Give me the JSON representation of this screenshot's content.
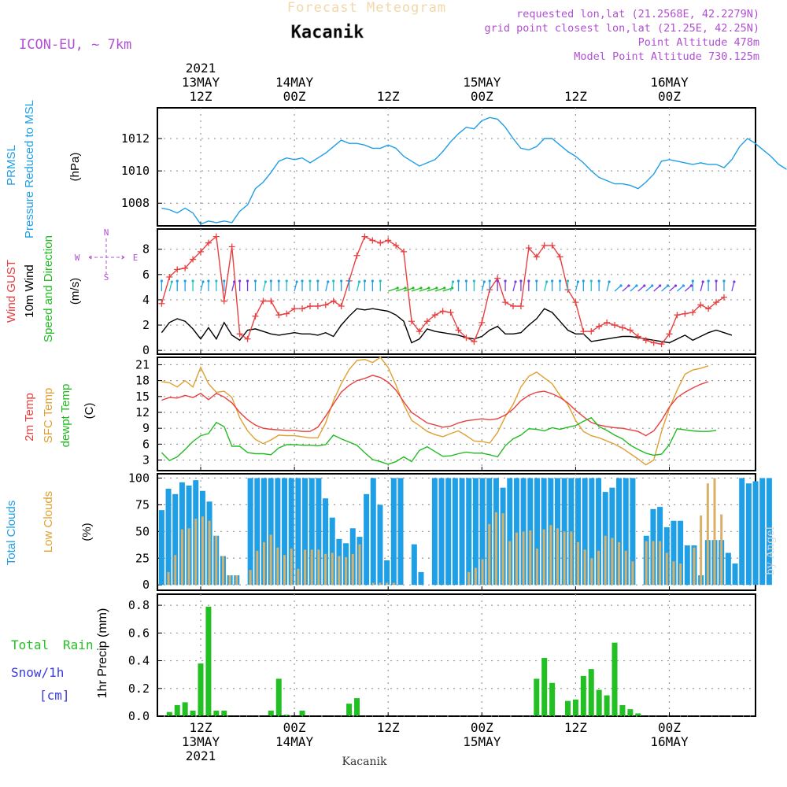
{
  "header": {
    "product": "Forecast Meteogram",
    "location": "Kacanik",
    "model": "ICON-EU, ~ 7km",
    "requested": "requested lon,lat (21.2568E, 42.2279N)",
    "gridpoint": "grid point closest lon,lat (21.25E, 42.25N)",
    "point_alt": "Point Altitude 478m",
    "model_alt": "Model Point Altitude 730.125m",
    "footer_location": "Kacanik",
    "credit": "by Angel"
  },
  "time_axis": {
    "year": "2021",
    "ticks": [
      {
        "t": 0,
        "hour": "12Z",
        "date": "13MAY"
      },
      {
        "t": 12,
        "hour": "00Z",
        "date": "14MAY"
      },
      {
        "t": 24,
        "hour": "12Z",
        "date": ""
      },
      {
        "t": 36,
        "hour": "00Z",
        "date": "15MAY"
      },
      {
        "t": 48,
        "hour": "12Z",
        "date": ""
      },
      {
        "t": 60,
        "hour": "00Z",
        "date": "16MAY"
      }
    ],
    "t_min": -5.5,
    "t_max": 71
  },
  "colors": {
    "pressure": "#1f9fe6",
    "gust": "#e84040",
    "wind": "#000000",
    "dir_label": "#22bb22",
    "temp": "#e84040",
    "sfc": "#e0a030",
    "dewpt": "#22bb22",
    "total_cloud": "#1f9fe6",
    "low_cloud": "#d8b068",
    "rain": "#22c022",
    "snow": "#3a3ae0",
    "purple": "#b050d0"
  },
  "chart_data": [
    {
      "type": "line",
      "name": "pressure",
      "label1": "PRMSL",
      "label2": "Pressure Reduced to MSL",
      "unit": "(hPa)",
      "ylim": [
        1006.6,
        1013.9
      ],
      "yticks": [
        1008,
        1010,
        1012
      ],
      "values": [
        1007.7,
        1007.6,
        1007.4,
        1007.7,
        1007.4,
        1006.7,
        1006.9,
        1006.8,
        1006.9,
        1006.8,
        1007.5,
        1007.9,
        1008.9,
        1009.3,
        1009.9,
        1010.6,
        1010.8,
        1010.7,
        1010.8,
        1010.5,
        1010.8,
        1011.1,
        1011.5,
        1011.9,
        1011.7,
        1011.7,
        1011.6,
        1011.4,
        1011.4,
        1011.6,
        1011.4,
        1010.9,
        1010.6,
        1010.3,
        1010.5,
        1010.7,
        1011.2,
        1011.8,
        1012.3,
        1012.7,
        1012.6,
        1013.1,
        1013.3,
        1013.2,
        1012.7,
        1012.0,
        1011.4,
        1011.3,
        1011.5,
        1012.0,
        1012.0,
        1011.6,
        1011.2,
        1010.9,
        1010.5,
        1010.0,
        1009.6,
        1009.4,
        1009.2,
        1009.2,
        1009.1,
        1008.9,
        1009.3,
        1009.8,
        1010.6,
        1010.7,
        1010.6,
        1010.5,
        1010.4,
        1010.5,
        1010.4,
        1010.4,
        1010.2,
        1010.7,
        1011.5,
        1012.0,
        1011.7,
        1011.3,
        1010.9,
        1010.4,
        1010.1
      ]
    },
    {
      "type": "line",
      "name": "wind",
      "label1": "Wind GUST",
      "label2": "10m Wind",
      "label3": "Speed and Direction",
      "unit": "(m/s)",
      "compass": {
        "n": "N",
        "s": "S",
        "w": "W",
        "e": "E"
      },
      "ylim": [
        -0.3,
        9.6
      ],
      "yticks": [
        0,
        2,
        4,
        6,
        8
      ],
      "gust": [
        3.7,
        5.8,
        6.4,
        6.5,
        7.2,
        7.8,
        8.5,
        9.0,
        3.9,
        8.2,
        1.3,
        0.9,
        2.7,
        3.9,
        3.9,
        2.8,
        2.9,
        3.3,
        3.3,
        3.5,
        3.5,
        3.6,
        3.9,
        3.5,
        5.5,
        7.5,
        9.0,
        8.7,
        8.5,
        8.7,
        8.3,
        7.8,
        2.3,
        1.5,
        2.3,
        2.8,
        3.1,
        3.0,
        1.6,
        1.0,
        0.7,
        2.2,
        4.8,
        5.7,
        3.8,
        3.5,
        3.5,
        8.1,
        7.4,
        8.3,
        8.3,
        7.4,
        4.8,
        3.8,
        1.5,
        1.5,
        1.9,
        2.2,
        2.0,
        1.8,
        1.6,
        1.1,
        0.8,
        0.6,
        0.5,
        1.3,
        2.8,
        2.9,
        3.0,
        3.6,
        3.3,
        3.8,
        4.2
      ],
      "speed": [
        1.4,
        2.2,
        2.5,
        2.3,
        1.7,
        0.9,
        1.8,
        0.9,
        2.2,
        1.2,
        0.8,
        1.6,
        1.7,
        1.5,
        1.3,
        1.2,
        1.3,
        1.4,
        1.3,
        1.3,
        1.2,
        1.4,
        1.1,
        2.0,
        2.7,
        3.3,
        3.2,
        3.3,
        3.2,
        3.1,
        2.8,
        2.3,
        0.6,
        0.9,
        1.7,
        1.5,
        1.4,
        1.3,
        1.2,
        1.0,
        0.9,
        1.1,
        1.6,
        1.9,
        1.3,
        1.3,
        1.4,
        2.0,
        2.5,
        3.3,
        3.0,
        2.3,
        1.6,
        1.3,
        1.3,
        0.7,
        0.8,
        0.9,
        1.0,
        1.1,
        1.1,
        1.0,
        0.9,
        0.8,
        0.7,
        0.6,
        0.9,
        1.2,
        0.8,
        1.1,
        1.4,
        1.6,
        1.4,
        1.2
      ]
    },
    {
      "type": "line",
      "name": "temperature",
      "label1": "2m Temp",
      "label2": "SFC Temp",
      "label3": "dewpt Temp",
      "unit": "(C)",
      "ylim": [
        1.0,
        22.4
      ],
      "yticks": [
        3,
        6,
        9,
        12,
        15,
        18,
        21
      ],
      "t2m": [
        14.3,
        14.8,
        14.7,
        15.2,
        14.8,
        15.6,
        14.4,
        15.6,
        14.9,
        13.8,
        12.0,
        10.6,
        9.6,
        9.0,
        8.8,
        8.7,
        8.6,
        8.6,
        8.4,
        8.4,
        9.2,
        11.3,
        13.6,
        15.8,
        17.1,
        18.0,
        18.4,
        19.0,
        18.6,
        17.7,
        16.2,
        14.0,
        12.0,
        11.0,
        10.0,
        9.6,
        9.2,
        9.4,
        10.0,
        10.4,
        10.6,
        10.8,
        10.6,
        10.8,
        11.5,
        12.6,
        14.2,
        15.2,
        15.8,
        16.0,
        15.5,
        14.8,
        13.8,
        12.4,
        11.2,
        10.1,
        9.6,
        9.3,
        9.1,
        9.0,
        8.7,
        8.4,
        7.6,
        8.5,
        10.5,
        13.0,
        14.8,
        15.8,
        16.6,
        17.3,
        17.8
      ],
      "sfc": [
        17.8,
        17.6,
        16.8,
        18.0,
        16.8,
        20.5,
        17.4,
        15.8,
        16.0,
        14.8,
        11.0,
        8.5,
        6.9,
        6.1,
        6.8,
        7.7,
        7.6,
        7.6,
        7.4,
        7.2,
        7.2,
        10.0,
        14.2,
        17.4,
        20.1,
        21.8,
        22.0,
        21.4,
        22.4,
        20.5,
        17.2,
        13.5,
        10.5,
        9.5,
        8.4,
        7.8,
        7.4,
        8.0,
        8.5,
        7.6,
        6.6,
        6.5,
        6.2,
        8.2,
        11.2,
        13.5,
        16.8,
        18.8,
        19.6,
        18.5,
        17.4,
        15.2,
        13.5,
        10.5,
        8.4,
        7.6,
        7.2,
        6.6,
        6.0,
        5.2,
        4.2,
        3.2,
        2.1,
        3.0,
        8.4,
        12.8,
        16.2,
        19.2,
        20.0,
        20.3,
        20.8
      ],
      "dewpt": [
        4.4,
        2.9,
        3.6,
        5.0,
        6.5,
        7.6,
        8.0,
        10.1,
        9.3,
        5.6,
        5.6,
        4.4,
        4.2,
        4.2,
        4.0,
        5.3,
        5.9,
        5.9,
        5.8,
        5.8,
        5.7,
        5.9,
        7.7,
        7.0,
        6.4,
        5.8,
        4.4,
        3.1,
        2.7,
        2.2,
        2.7,
        3.6,
        2.7,
        4.8,
        5.5,
        4.6,
        3.7,
        3.8,
        4.2,
        4.5,
        4.3,
        4.3,
        4.0,
        3.6,
        5.7,
        7.0,
        7.7,
        8.9,
        8.8,
        8.5,
        9.1,
        8.8,
        9.2,
        9.5,
        10.3,
        11.0,
        9.3,
        8.6,
        7.7,
        7.0,
        5.8,
        5.0,
        4.3,
        3.9,
        4.1,
        5.9,
        8.9,
        8.7,
        8.5,
        8.4,
        8.4,
        8.6
      ]
    },
    {
      "type": "bar",
      "name": "clouds",
      "label1": "Total Clouds",
      "label2": "Low Clouds",
      "unit": "(%)",
      "ylim": [
        -5,
        104
      ],
      "yticks": [
        0,
        25,
        50,
        75,
        100
      ],
      "total": [
        70,
        90,
        85,
        96,
        93,
        98,
        88,
        78,
        46,
        27,
        9,
        9,
        0,
        100,
        100,
        100,
        100,
        100,
        100,
        100,
        100,
        100,
        100,
        100,
        81,
        63,
        43,
        39,
        53,
        45,
        85,
        100,
        75,
        23,
        100,
        100,
        0,
        38,
        12,
        0,
        100,
        100,
        100,
        100,
        100,
        100,
        100,
        100,
        100,
        100,
        91,
        100,
        100,
        100,
        100,
        100,
        100,
        100,
        100,
        100,
        100,
        100,
        100,
        100,
        100,
        87,
        91,
        100,
        100,
        100,
        0,
        46,
        71,
        73,
        54,
        60,
        60,
        37,
        37,
        9,
        42,
        42,
        42,
        30,
        20,
        100,
        95,
        97,
        100,
        100
      ],
      "low": [
        0,
        12,
        28,
        52,
        53,
        62,
        64,
        60,
        46,
        27,
        9,
        9,
        0,
        14,
        32,
        40,
        47,
        35,
        28,
        34,
        15,
        33,
        33,
        33,
        29,
        30,
        27,
        26,
        29,
        38,
        0,
        2,
        2,
        2,
        2,
        0,
        0,
        0,
        0,
        0,
        0,
        0,
        0,
        0,
        0,
        12,
        16,
        24,
        57,
        68,
        67,
        41,
        49,
        50,
        51,
        34,
        52,
        56,
        53,
        50,
        50,
        40,
        33,
        25,
        32,
        46,
        44,
        40,
        32,
        22,
        0,
        41,
        41,
        41,
        30,
        22,
        20,
        0,
        35,
        65,
        95,
        100,
        66,
        0,
        0,
        0,
        0,
        0,
        0,
        0
      ],
      "x_start": -5,
      "x_step": 0.874
    },
    {
      "type": "bar",
      "name": "precip",
      "label1": "Total",
      "label2": "Rain",
      "label3": "Snow/1h",
      "label4": "[cm]",
      "unit": "1hr Precip (mm)",
      "ylim": [
        0,
        0.88
      ],
      "yticks": [
        0.0,
        0.2,
        0.4,
        0.6,
        0.8
      ],
      "bars": [
        {
          "t": -4,
          "v": 0.03
        },
        {
          "t": -3,
          "v": 0.08
        },
        {
          "t": -2,
          "v": 0.1
        },
        {
          "t": -1,
          "v": 0.04
        },
        {
          "t": 0,
          "v": 0.38
        },
        {
          "t": 1,
          "v": 0.79
        },
        {
          "t": 2,
          "v": 0.04
        },
        {
          "t": 3,
          "v": 0.04
        },
        {
          "t": 9,
          "v": 0.04
        },
        {
          "t": 10,
          "v": 0.27
        },
        {
          "t": 11,
          "v": 0.01
        },
        {
          "t": 13,
          "v": 0.04
        },
        {
          "t": 19,
          "v": 0.09
        },
        {
          "t": 20,
          "v": 0.13
        },
        {
          "t": 43,
          "v": 0.27
        },
        {
          "t": 44,
          "v": 0.42
        },
        {
          "t": 45,
          "v": 0.24
        },
        {
          "t": 47,
          "v": 0.11
        },
        {
          "t": 48,
          "v": 0.12
        },
        {
          "t": 49,
          "v": 0.29
        },
        {
          "t": 50,
          "v": 0.34
        },
        {
          "t": 51,
          "v": 0.19
        },
        {
          "t": 52,
          "v": 0.15
        },
        {
          "t": 53,
          "v": 0.53
        },
        {
          "t": 54,
          "v": 0.08
        },
        {
          "t": 55,
          "v": 0.05
        },
        {
          "t": 56,
          "v": 0.02
        }
      ]
    }
  ]
}
